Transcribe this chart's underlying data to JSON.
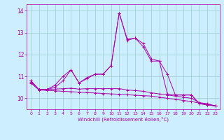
{
  "xlabel": "Windchill (Refroidissement éolien,°C)",
  "x": [
    0,
    1,
    2,
    3,
    4,
    5,
    6,
    7,
    8,
    9,
    10,
    11,
    12,
    13,
    14,
    15,
    16,
    17,
    18,
    19,
    20,
    21,
    22,
    23
  ],
  "lines": [
    [
      10.8,
      10.4,
      10.4,
      10.5,
      10.8,
      11.3,
      10.7,
      10.9,
      11.1,
      11.1,
      11.5,
      13.9,
      12.7,
      12.75,
      12.5,
      11.8,
      11.7,
      11.1,
      10.15,
      10.15,
      10.15,
      9.75,
      9.7,
      9.65
    ],
    [
      10.8,
      10.4,
      10.4,
      10.6,
      11.0,
      11.3,
      10.7,
      10.95,
      11.1,
      11.1,
      11.5,
      13.9,
      12.65,
      12.75,
      12.35,
      11.7,
      11.7,
      10.2,
      10.15,
      10.15,
      10.15,
      9.75,
      9.7,
      9.65
    ],
    [
      10.75,
      10.4,
      10.4,
      10.42,
      10.44,
      10.46,
      10.42,
      10.44,
      10.44,
      10.44,
      10.44,
      10.44,
      10.38,
      10.35,
      10.32,
      10.25,
      10.2,
      10.15,
      10.1,
      10.05,
      10.0,
      9.8,
      9.75,
      9.65
    ],
    [
      10.7,
      10.38,
      10.36,
      10.34,
      10.32,
      10.3,
      10.28,
      10.26,
      10.24,
      10.22,
      10.2,
      10.18,
      10.16,
      10.14,
      10.12,
      10.1,
      10.05,
      10.0,
      9.95,
      9.9,
      9.85,
      9.78,
      9.72,
      9.65
    ]
  ],
  "line_color": "#aa00aa",
  "bg_color": "#cceeff",
  "grid_color": "#99cccc",
  "ylim": [
    9.5,
    14.3
  ],
  "yticks": [
    10,
    11,
    12,
    13,
    14
  ],
  "xlim": [
    -0.5,
    23.5
  ],
  "figsize": [
    3.2,
    2.0
  ],
  "dpi": 100
}
